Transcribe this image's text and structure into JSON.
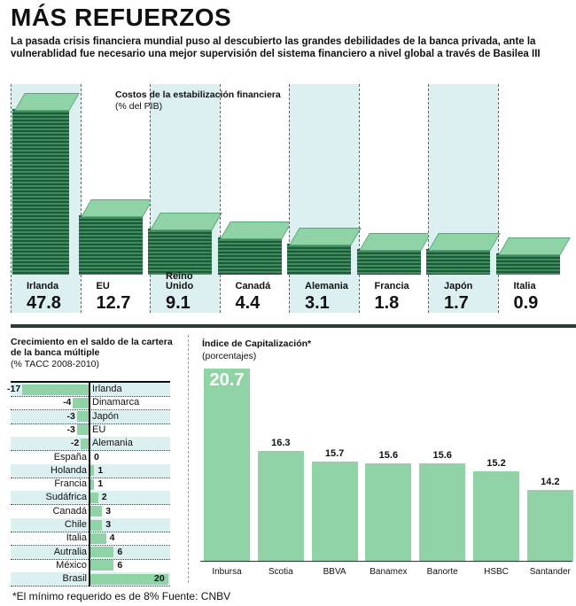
{
  "title": "MÁS REFUERZOS",
  "intro": "La pasada crisis financiera mundial puso al descubierto las grandes debilidades de la banca privada, ante la vulnerablidad fue necesario una mejor supervisión del sistema financiero a nivel global a través de Basilea III",
  "footnote": "*El mínimo requerido es de 8% Fuente: CNBV",
  "colors": {
    "bar": "#8fd3a6",
    "money_dark": "#1e5a3a",
    "column_alt": "#dcf0f2"
  },
  "chart_data": [
    {
      "type": "bar",
      "title": "Costos de la estabilización financiera",
      "subtitle": "(% del PIB)",
      "categories": [
        "Irlanda",
        "EU",
        "Reino Unido",
        "Canadá",
        "Alemania",
        "Francia",
        "Japón",
        "Italia"
      ],
      "values": [
        47.8,
        12.7,
        9.1,
        4.4,
        3.1,
        1.8,
        1.7,
        0.9
      ],
      "value_labels": [
        "47.8",
        "12.7",
        "9.1",
        "4.4",
        "3.1",
        "1.8",
        "1.7",
        "0.9"
      ],
      "icon": "money-stack-icon"
    },
    {
      "type": "bar",
      "orientation": "horizontal",
      "title": "Crecimiento en el saldo de la cartera de la banca múltiple",
      "subtitle": "(% TACC 2008-2010)",
      "categories": [
        "Irlanda",
        "Dinamarca",
        "Japón",
        "EU",
        "Alemania",
        "España",
        "Holanda",
        "Francia",
        "Sudáfrica",
        "Canadá",
        "Chile",
        "Italia",
        "Autralia",
        "México",
        "Brasil"
      ],
      "values": [
        -17,
        -4,
        -3,
        -3,
        -2,
        0,
        1,
        1,
        2,
        3,
        3,
        4,
        6,
        6,
        20
      ],
      "value_labels": [
        "-17",
        "-4",
        "-3",
        "-3",
        "-2",
        "0",
        "1",
        "1",
        "2",
        "3",
        "3",
        "4",
        "6",
        "6",
        "20"
      ]
    },
    {
      "type": "bar",
      "title": "Índice de Capitalización*",
      "subtitle": "(porcentajes)",
      "categories": [
        "Inbursa",
        "Scotia",
        "BBVA",
        "Banamex",
        "Banorte",
        "HSBC",
        "Santander"
      ],
      "values": [
        20.7,
        16.3,
        15.7,
        15.6,
        15.6,
        15.2,
        14.2
      ],
      "value_labels": [
        "20.7",
        "16.3",
        "15.7",
        "15.6",
        "15.6",
        "15.2",
        "14.2"
      ],
      "ylim": [
        10.4,
        21
      ]
    }
  ]
}
